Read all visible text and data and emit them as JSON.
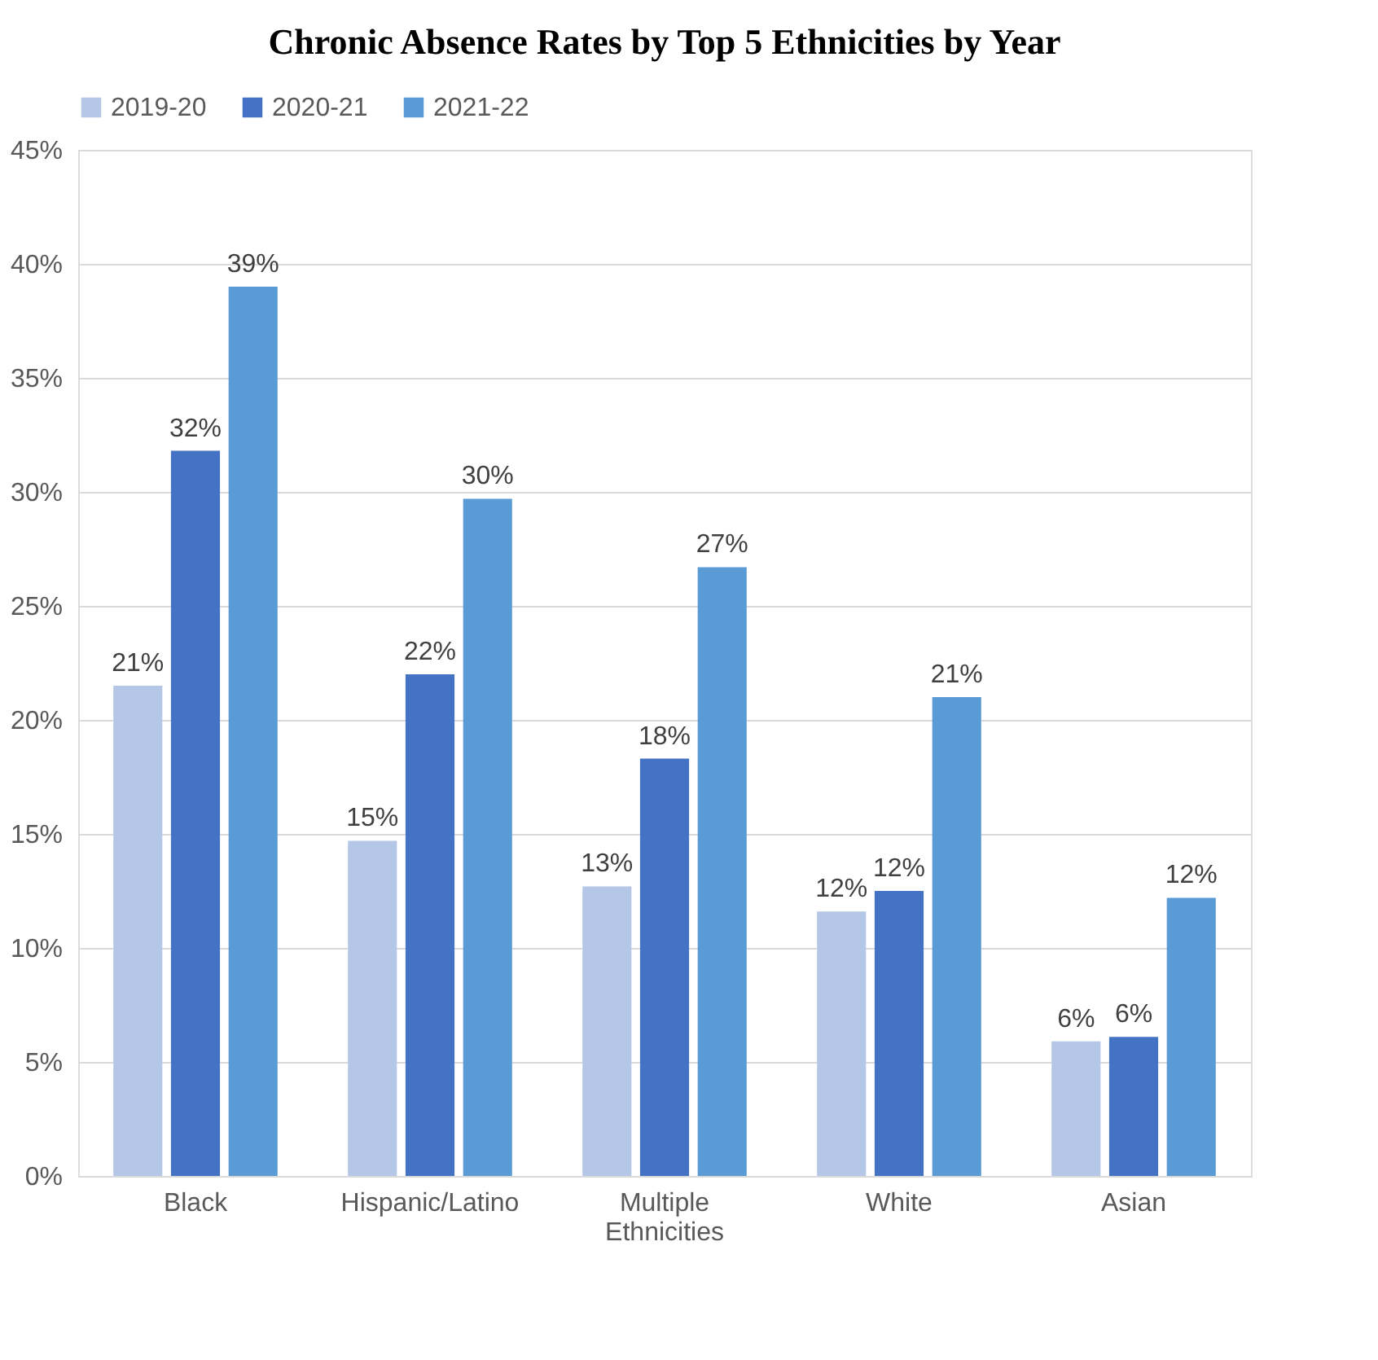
{
  "chart_data": {
    "type": "bar",
    "title": "Chronic Absence Rates by Top 5 Ethnicities by Year",
    "categories": [
      "Black",
      "Hispanic/Latino",
      "Multiple Ethnicities",
      "White",
      "Asian"
    ],
    "series": [
      {
        "name": "2019-20",
        "color": "#b4c7e7",
        "values": [
          21.5,
          14.7,
          12.7,
          11.6,
          5.9
        ],
        "value_labels": [
          "21%",
          "15%",
          "13%",
          "12%",
          "6%"
        ]
      },
      {
        "name": "2020-21",
        "color": "#4472c4",
        "values": [
          31.8,
          22.0,
          18.3,
          12.5,
          6.1
        ],
        "value_labels": [
          "32%",
          "22%",
          "18%",
          "12%",
          "6%"
        ]
      },
      {
        "name": "2021-22",
        "color": "#5b9bd5",
        "values": [
          39.0,
          29.7,
          26.7,
          21.0,
          12.2
        ],
        "value_labels": [
          "39%",
          "30%",
          "27%",
          "21%",
          "12%"
        ]
      }
    ],
    "ylim": [
      0,
      45
    ],
    "yticks": [
      {
        "value": 0,
        "label": "0%"
      },
      {
        "value": 5,
        "label": "5%"
      },
      {
        "value": 10,
        "label": "10%"
      },
      {
        "value": 15,
        "label": "15%"
      },
      {
        "value": 20,
        "label": "20%"
      },
      {
        "value": 25,
        "label": "25%"
      },
      {
        "value": 30,
        "label": "30%"
      },
      {
        "value": 35,
        "label": "35%"
      },
      {
        "value": 40,
        "label": "40%"
      },
      {
        "value": 45,
        "label": "45%"
      }
    ],
    "grid": "y",
    "legend": "top"
  }
}
